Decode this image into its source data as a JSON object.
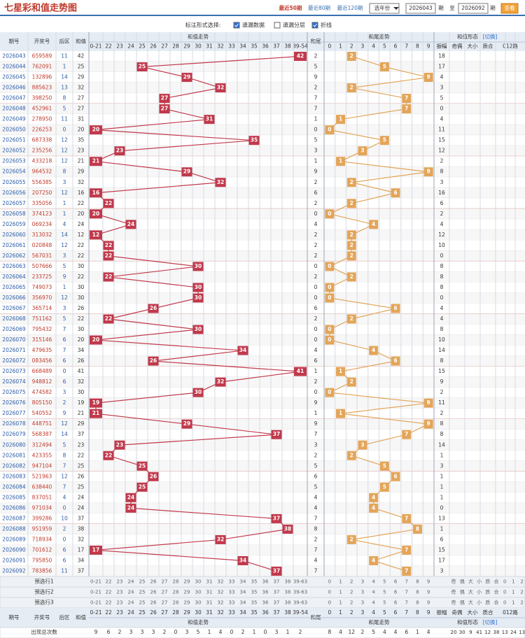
{
  "header": {
    "title": "七星彩和值走势图",
    "links": [
      "最近50期",
      "最近80期",
      "最近120期"
    ],
    "year_select": "选年份",
    "from": "2026043",
    "period_label": "期",
    "to_label": "至",
    "to": "2026092",
    "period_label2": "期",
    "button": "查看"
  },
  "options": {
    "label": "标注形式选择:",
    "items": [
      {
        "text": "遗漏数据",
        "checked": true
      },
      {
        "text": "遗漏分层",
        "checked": false
      },
      {
        "text": "折线",
        "checked": true
      }
    ]
  },
  "columns": {
    "issue": "期号",
    "number": "开奖号",
    "back": "后区",
    "sum": "和值",
    "sum_trend": "和值走势",
    "tail": "和尾",
    "tail_trend": "和尾走势",
    "form": "和值形态",
    "switch": "[切换]",
    "form_cols": [
      "振幅",
      "奇偶",
      "大小",
      "质合",
      "012路"
    ]
  },
  "sum_bins": [
    "0-21",
    "22",
    "23",
    "24",
    "25",
    "26",
    "27",
    "28",
    "29",
    "30",
    "31",
    "32",
    "33",
    "34",
    "35",
    "36",
    "37",
    "38",
    "39-54"
  ],
  "preselect_bins": [
    "0-21",
    "22",
    "23",
    "24",
    "25",
    "26",
    "27",
    "28",
    "29",
    "30",
    "31",
    "32",
    "33",
    "34",
    "35",
    "36",
    "37",
    "38",
    "39-63"
  ],
  "tail_digits": [
    0,
    1,
    2,
    3,
    4,
    5,
    6,
    7,
    8,
    9
  ],
  "rows": [
    [
      "2026043",
      "659589",
      11,
      42,
      2,
      18
    ],
    [
      "2026044",
      "762091",
      1,
      25,
      5,
      17
    ],
    [
      "2026045",
      "132896",
      14,
      29,
      9,
      4
    ],
    [
      "2026046",
      "885623",
      13,
      32,
      2,
      3
    ],
    [
      "2026047",
      "398250",
      8,
      27,
      7,
      5
    ],
    [
      "2026048",
      "452961",
      5,
      27,
      7,
      0
    ],
    [
      "2026049",
      "278950",
      11,
      31,
      1,
      4
    ],
    [
      "2026050",
      "226253",
      0,
      20,
      0,
      11
    ],
    [
      "2026051",
      "687338",
      12,
      35,
      5,
      15
    ],
    [
      "2026052",
      "235256",
      12,
      23,
      3,
      12
    ],
    [
      "2026053",
      "433218",
      12,
      21,
      1,
      2
    ],
    [
      "2026054",
      "964532",
      8,
      29,
      9,
      8
    ],
    [
      "2026055",
      "556385",
      3,
      32,
      2,
      3
    ],
    [
      "2026056",
      "207250",
      12,
      16,
      6,
      16
    ],
    [
      "2026057",
      "335056",
      1,
      22,
      2,
      6
    ],
    [
      "2026058",
      "374123",
      1,
      20,
      0,
      2
    ],
    [
      "2026059",
      "069234",
      4,
      24,
      4,
      4
    ],
    [
      "2026060",
      "313032",
      14,
      12,
      2,
      12
    ],
    [
      "2026061",
      "020848",
      12,
      22,
      2,
      10
    ],
    [
      "2026062",
      "567031",
      3,
      22,
      2,
      0
    ],
    [
      "2026063",
      "507666",
      5,
      30,
      0,
      8
    ],
    [
      "2026064",
      "233725",
      9,
      22,
      2,
      8
    ],
    [
      "2026065",
      "749073",
      1,
      30,
      0,
      8
    ],
    [
      "2026066",
      "356970",
      12,
      30,
      0,
      0
    ],
    [
      "2026067",
      "365714",
      3,
      26,
      6,
      4
    ],
    [
      "2026068",
      "751162",
      5,
      22,
      2,
      4
    ],
    [
      "2026069",
      "795432",
      7,
      30,
      0,
      8
    ],
    [
      "2026070",
      "315146",
      6,
      20,
      0,
      10
    ],
    [
      "2026071",
      "479635",
      7,
      34,
      4,
      14
    ],
    [
      "2026072",
      "083456",
      6,
      26,
      6,
      8
    ],
    [
      "2026073",
      "668489",
      0,
      41,
      1,
      15
    ],
    [
      "2026074",
      "948812",
      6,
      32,
      2,
      9
    ],
    [
      "2026075",
      "474582",
      3,
      30,
      0,
      2
    ],
    [
      "2026076",
      "805150",
      2,
      19,
      9,
      11
    ],
    [
      "2026077",
      "540552",
      9,
      21,
      1,
      2
    ],
    [
      "2026078",
      "448751",
      12,
      29,
      9,
      8
    ],
    [
      "2026079",
      "568387",
      14,
      37,
      7,
      8
    ],
    [
      "2026080",
      "312494",
      5,
      23,
      3,
      14
    ],
    [
      "2026081",
      "423355",
      8,
      22,
      2,
      1
    ],
    [
      "2026082",
      "947104",
      7,
      25,
      5,
      3
    ],
    [
      "2026083",
      "521963",
      12,
      26,
      6,
      1
    ],
    [
      "2026084",
      "638440",
      7,
      25,
      5,
      1
    ],
    [
      "2026085",
      "837051",
      4,
      24,
      4,
      1
    ],
    [
      "2026086",
      "971034",
      0,
      24,
      4,
      0
    ],
    [
      "2026087",
      "399286",
      10,
      37,
      7,
      13
    ],
    [
      "2026088",
      "951959",
      2,
      38,
      8,
      1
    ],
    [
      "2026089",
      "718934",
      0,
      32,
      2,
      6
    ],
    [
      "2026090",
      "701612",
      6,
      17,
      7,
      15
    ],
    [
      "2026091",
      "795850",
      6,
      34,
      4,
      17
    ],
    [
      "2026092",
      "783856",
      11,
      37,
      7,
      3
    ]
  ],
  "preselect": [
    "预选行1",
    "预选行2",
    "预选行3"
  ],
  "form_labels": [
    "奇",
    "偶",
    "大",
    "小",
    "质",
    "合",
    "0",
    "1",
    "2"
  ],
  "totals": {
    "label": "出现总次数",
    "sum": [
      9,
      6,
      2,
      3,
      3,
      3,
      2,
      0,
      3,
      5,
      1,
      4,
      0,
      2,
      1,
      0,
      3,
      1,
      2
    ],
    "tail": [
      8,
      4,
      12,
      2,
      5,
      4,
      4,
      6,
      1,
      4
    ],
    "form": [
      20,
      30,
      9,
      41,
      12,
      38,
      13,
      24,
      13
    ]
  }
}
